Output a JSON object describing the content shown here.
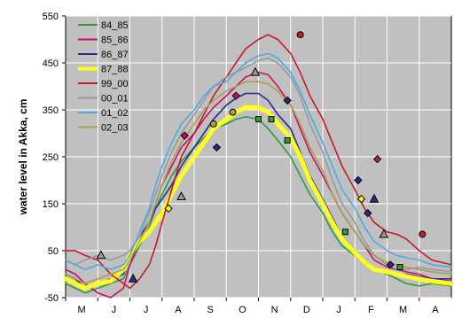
{
  "chart_data": {
    "type": "line",
    "title": "",
    "xlabel": "",
    "ylabel": "water level in Akka, cm",
    "ylim": [
      -50,
      550
    ],
    "yticks": [
      -50,
      50,
      150,
      250,
      350,
      450,
      550
    ],
    "x_categories": [
      "M",
      "J",
      "J",
      "A",
      "S",
      "O",
      "N",
      "D",
      "J",
      "F",
      "M",
      "A"
    ],
    "grid": true,
    "legend_position": "top-left",
    "background_color": "#c0c0c0",
    "series": [
      {
        "name": "84_85",
        "color": "#2e9e3a",
        "width": 1.6,
        "x": [
          0,
          0.3,
          0.6,
          1,
          1.4,
          1.8,
          2,
          2.3,
          2.6,
          2.8,
          3,
          3.3,
          3.6,
          4,
          4.3,
          4.6,
          5,
          5.3,
          5.6,
          6,
          6.3,
          6.6,
          7,
          7.3,
          7.6,
          8,
          8.3,
          8.6,
          9,
          9.3,
          9.6,
          10,
          10.3,
          10.6,
          11,
          11.4,
          12
        ],
        "y": [
          -20,
          -30,
          -40,
          -30,
          -20,
          -10,
          20,
          60,
          100,
          140,
          170,
          210,
          240,
          270,
          290,
          310,
          320,
          330,
          335,
          330,
          310,
          285,
          250,
          210,
          170,
          130,
          90,
          60,
          40,
          20,
          10,
          0,
          -10,
          -20,
          -25,
          -20,
          -25
        ]
      },
      {
        "name": "85_86",
        "color": "#c8106a",
        "width": 1.6,
        "x": [
          0,
          0.3,
          0.6,
          1,
          1.4,
          1.8,
          2,
          2.3,
          2.6,
          2.8,
          3,
          3.3,
          3.6,
          4,
          4.3,
          4.6,
          5,
          5.3,
          5.6,
          6,
          6.3,
          6.6,
          7,
          7.3,
          7.6,
          8,
          8.3,
          8.6,
          9,
          9.3,
          9.6,
          10,
          10.3,
          10.6,
          11,
          11.4,
          12
        ],
        "y": [
          10,
          0,
          -20,
          -40,
          -50,
          -30,
          20,
          70,
          110,
          150,
          190,
          230,
          270,
          300,
          330,
          355,
          380,
          400,
          420,
          430,
          425,
          400,
          360,
          310,
          260,
          210,
          170,
          130,
          90,
          60,
          30,
          15,
          10,
          5,
          0,
          -10,
          -15
        ]
      },
      {
        "name": "86_87",
        "color": "#2a2a8c",
        "width": 1.6,
        "x": [
          0,
          0.3,
          0.6,
          1,
          1.4,
          1.8,
          2,
          2.3,
          2.6,
          2.8,
          3,
          3.3,
          3.6,
          4,
          4.3,
          4.6,
          5,
          5.3,
          5.6,
          6,
          6.3,
          6.6,
          7,
          7.3,
          7.6,
          8,
          8.3,
          8.6,
          9,
          9.3,
          9.6,
          10,
          10.3,
          10.6,
          11,
          11.4,
          12
        ],
        "y": [
          0,
          -10,
          -30,
          -20,
          -10,
          0,
          40,
          80,
          110,
          140,
          160,
          190,
          230,
          270,
          300,
          330,
          360,
          375,
          385,
          385,
          370,
          340,
          310,
          260,
          210,
          160,
          120,
          80,
          50,
          25,
          10,
          5,
          0,
          0,
          -5,
          -10,
          -10
        ]
      },
      {
        "name": "87_88",
        "color": "#ffff22",
        "width": 5,
        "x": [
          0,
          0.3,
          0.6,
          1,
          1.4,
          1.8,
          2,
          2.3,
          2.6,
          2.8,
          3,
          3.3,
          3.6,
          4,
          4.3,
          4.6,
          5,
          5.3,
          5.6,
          6,
          6.3,
          6.6,
          7,
          7.3,
          7.6,
          8,
          8.3,
          8.6,
          9,
          9.3,
          9.6,
          10,
          10.3,
          10.6,
          11,
          11.4,
          12
        ],
        "y": [
          -10,
          -20,
          -30,
          -20,
          -15,
          10,
          40,
          70,
          90,
          110,
          130,
          170,
          210,
          250,
          280,
          310,
          330,
          345,
          355,
          355,
          345,
          320,
          290,
          250,
          200,
          150,
          110,
          75,
          45,
          25,
          10,
          5,
          0,
          -5,
          -10,
          -15,
          -20
        ]
      },
      {
        "name": "99_00",
        "color": "#c41a2a",
        "width": 1.6,
        "x": [
          0,
          0.3,
          0.6,
          1,
          1.4,
          1.8,
          2,
          2.3,
          2.6,
          2.8,
          3,
          3.3,
          3.6,
          4,
          4.3,
          4.6,
          5,
          5.3,
          5.6,
          6,
          6.3,
          6.6,
          7,
          7.3,
          7.6,
          8,
          8.3,
          8.6,
          9,
          9.3,
          9.6,
          10,
          10.3,
          10.6,
          11,
          11.4,
          12
        ],
        "y": [
          50,
          50,
          40,
          30,
          0,
          -20,
          -30,
          -10,
          20,
          60,
          110,
          180,
          250,
          300,
          340,
          380,
          420,
          450,
          480,
          500,
          510,
          500,
          470,
          430,
          380,
          330,
          280,
          230,
          180,
          140,
          110,
          90,
          85,
          75,
          50,
          30,
          20
        ]
      },
      {
        "name": "00_01",
        "color": "#999999",
        "width": 1.6,
        "x": [
          0,
          0.3,
          0.6,
          1,
          1.4,
          1.8,
          2,
          2.3,
          2.6,
          2.8,
          3,
          3.3,
          3.6,
          4,
          4.3,
          4.6,
          5,
          5.3,
          5.6,
          6,
          6.3,
          6.6,
          7,
          7.3,
          7.6,
          8,
          8.3,
          8.6,
          9,
          9.3,
          9.6,
          10,
          10.3,
          10.6,
          11,
          11.4,
          12
        ],
        "y": [
          30,
          20,
          30,
          40,
          30,
          40,
          50,
          80,
          130,
          170,
          210,
          260,
          300,
          340,
          370,
          400,
          420,
          430,
          440,
          455,
          460,
          450,
          420,
          380,
          320,
          260,
          200,
          150,
          110,
          70,
          40,
          20,
          10,
          10,
          15,
          10,
          5
        ]
      },
      {
        "name": "01_02",
        "color": "#4fa9e6",
        "width": 1.6,
        "x": [
          0,
          0.3,
          0.6,
          1,
          1.4,
          1.8,
          2,
          2.3,
          2.6,
          2.8,
          3,
          3.3,
          3.6,
          4,
          4.3,
          4.6,
          5,
          5.3,
          5.6,
          6,
          6.3,
          6.6,
          7,
          7.3,
          7.6,
          8,
          8.3,
          8.6,
          9,
          9.3,
          9.6,
          10,
          10.3,
          10.6,
          11,
          11.4,
          12
        ],
        "y": [
          30,
          20,
          10,
          20,
          10,
          20,
          40,
          90,
          140,
          190,
          230,
          280,
          320,
          350,
          380,
          400,
          410,
          430,
          450,
          465,
          470,
          460,
          430,
          390,
          340,
          280,
          230,
          180,
          140,
          100,
          70,
          50,
          40,
          35,
          30,
          20,
          15
        ]
      },
      {
        "name": "02_03",
        "color": "#a8a04a",
        "width": 1.6,
        "x": [
          0,
          0.3,
          0.6,
          1,
          1.4,
          1.8,
          2,
          2.3,
          2.6,
          2.8,
          3,
          3.3,
          3.6,
          4,
          4.3,
          4.6,
          5,
          5.3,
          5.6,
          6,
          6.3,
          6.6,
          7,
          7.3,
          7.6,
          8,
          8.3,
          8.6,
          9,
          9.3,
          9.6,
          10,
          10.3,
          10.6,
          11,
          11.4,
          12
        ],
        "y": [
          0,
          -10,
          -20,
          -10,
          0,
          10,
          30,
          70,
          110,
          150,
          190,
          240,
          280,
          320,
          350,
          370,
          390,
          400,
          410,
          410,
          405,
          390,
          360,
          320,
          270,
          220,
          170,
          130,
          90,
          60,
          40,
          25,
          20,
          15,
          10,
          5,
          0
        ]
      }
    ],
    "markers": [
      {
        "series": "84_85",
        "shape": "square",
        "points": [
          [
            6.0,
            330
          ],
          [
            6.4,
            330
          ],
          [
            6.9,
            285
          ],
          [
            8.7,
            90
          ],
          [
            10.4,
            15
          ]
        ]
      },
      {
        "series": "85_86",
        "shape": "diamond",
        "points": [
          [
            3.7,
            295
          ],
          [
            5.3,
            380
          ],
          [
            9.7,
            245
          ]
        ]
      },
      {
        "series": "86_87",
        "shape": "diamond",
        "points": [
          [
            4.7,
            270
          ],
          [
            6.9,
            370
          ],
          [
            9.1,
            200
          ],
          [
            9.4,
            130
          ],
          [
            10.1,
            20
          ]
        ]
      },
      {
        "series": "87_88",
        "shape": "diamond",
        "points": [
          [
            3.2,
            140
          ],
          [
            9.2,
            160
          ]
        ]
      },
      {
        "series": "99_00",
        "shape": "circle",
        "points": [
          [
            7.3,
            510
          ],
          [
            11.1,
            85
          ]
        ]
      },
      {
        "series": "00_01",
        "shape": "triangle",
        "points": [
          [
            1.1,
            40
          ],
          [
            3.6,
            165
          ],
          [
            5.9,
            430
          ],
          [
            9.9,
            85
          ]
        ]
      },
      {
        "series": "02_03",
        "shape": "circle",
        "points": [
          [
            4.6,
            320
          ],
          [
            5.2,
            345
          ]
        ]
      },
      {
        "series": "86_87",
        "shape": "triangle",
        "points": [
          [
            2.1,
            -10
          ],
          [
            9.6,
            160
          ]
        ]
      }
    ]
  }
}
